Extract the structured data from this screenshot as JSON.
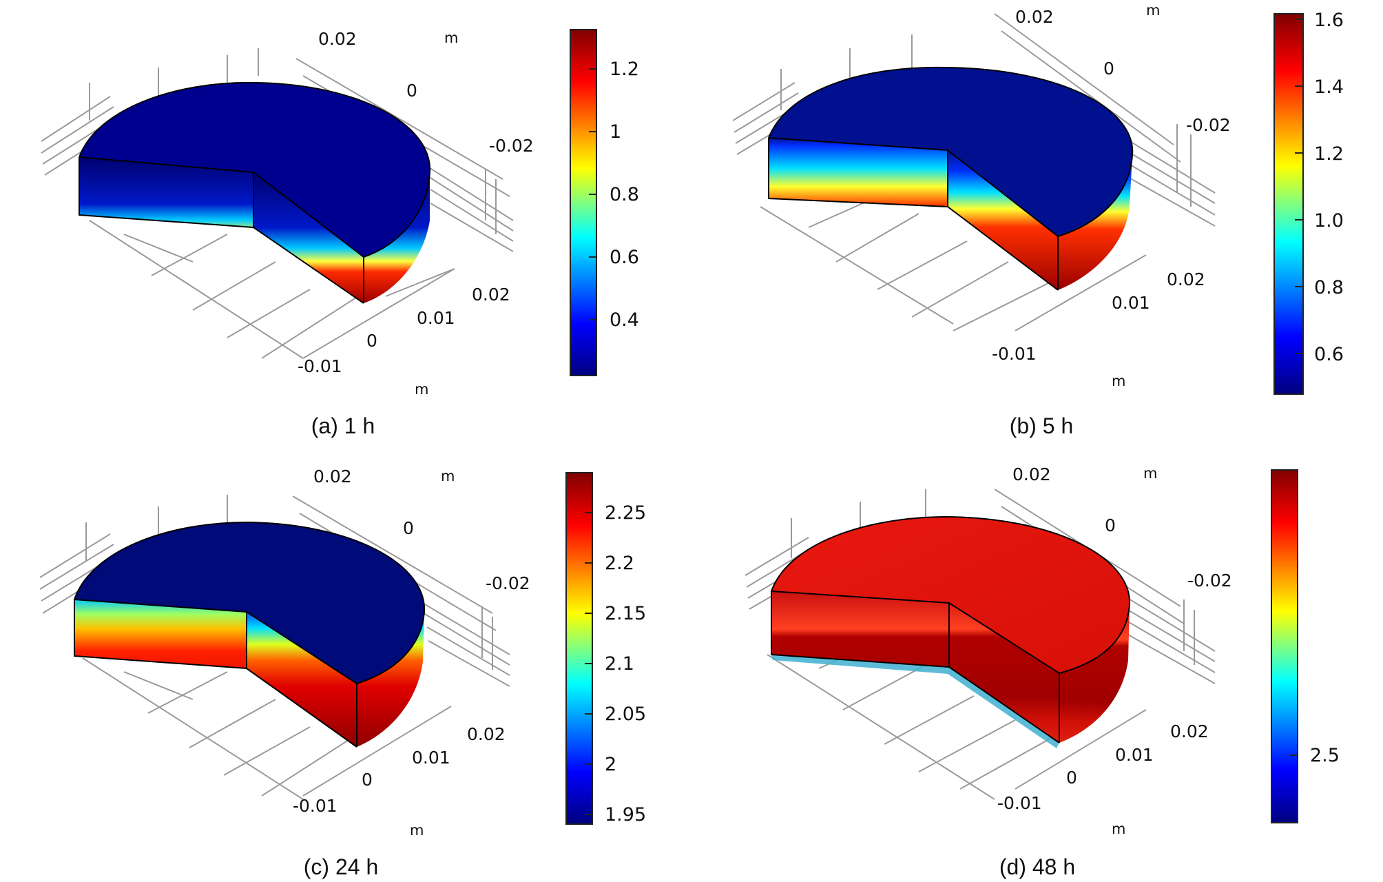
{
  "panels": [
    {
      "caption": "(a) 1 h",
      "axis": {
        "unit": "m",
        "top_a": "0.02",
        "top_b": "0",
        "right": "-0.02",
        "bot_a": "0.02",
        "bot_b": "0.01",
        "bot_c": "0",
        "bot_d": "-0.01"
      },
      "top_color": "#00008f",
      "colorbar": {
        "ticks": [
          "1.2",
          "1",
          "0.8",
          "0.6",
          "0.4"
        ]
      }
    },
    {
      "caption": "(b) 5 h",
      "axis": {
        "unit": "m",
        "top_a": "0.02",
        "top_b": "0",
        "right": "-0.02",
        "bot_a": "0.02",
        "bot_b": "0.01",
        "bot_c": "",
        "bot_d": "-0.01"
      },
      "top_color": "#00108f",
      "colorbar": {
        "ticks": [
          "1.6",
          "1.4",
          "1.2",
          "1.0",
          "0.8",
          "0.6"
        ]
      }
    },
    {
      "caption": "(c) 24 h",
      "axis": {
        "unit": "m",
        "top_a": "0.02",
        "top_b": "0",
        "right": "-0.02",
        "bot_a": "0.02",
        "bot_b": "0.01",
        "bot_c": "0",
        "bot_d": "-0.01"
      },
      "top_color": "#000a78",
      "colorbar": {
        "ticks": [
          "2.25",
          "2.2",
          "2.15",
          "2.1",
          "2.05",
          "2",
          "1.95"
        ]
      }
    },
    {
      "caption": "(d) 48 h",
      "axis": {
        "unit": "m",
        "top_a": "0.02",
        "top_b": "0",
        "right": "-0.02",
        "bot_a": "0.02",
        "bot_b": "0.01",
        "bot_c": "0",
        "bot_d": "-0.01"
      },
      "top_color": "#e01810",
      "colorbar": {
        "ticks": [
          "2.5"
        ]
      }
    }
  ],
  "colors": {
    "jet": [
      "#000080",
      "#0000ff",
      "#00ffff",
      "#ffff00",
      "#ff0000",
      "#800000"
    ]
  }
}
